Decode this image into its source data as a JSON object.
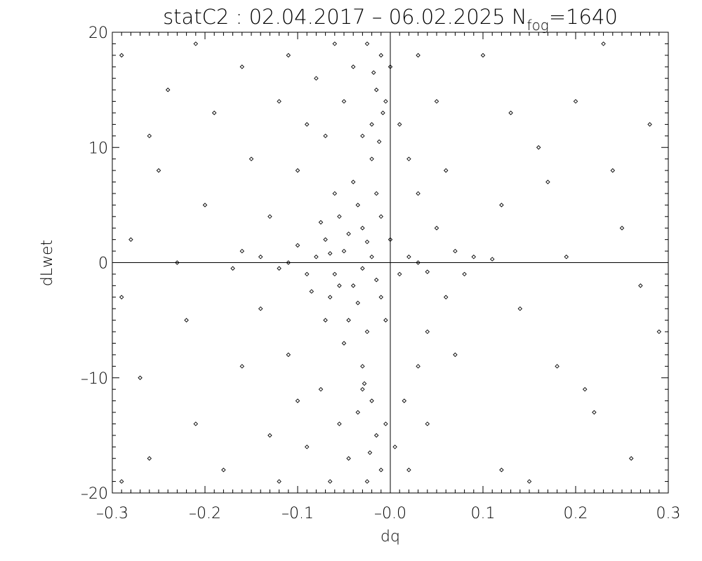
{
  "chart_data": {
    "type": "scatter",
    "title": "statC2 : 02.04.2017 – 06.02.2025 N",
    "title_subscript": "fog",
    "title_suffix": "=1640",
    "xlabel": "dq",
    "ylabel": "dLwet",
    "xlim": [
      -0.3,
      0.3
    ],
    "ylim": [
      -20,
      20
    ],
    "x_ticks": [
      -0.3,
      -0.2,
      -0.1,
      0.0,
      0.1,
      0.2,
      0.3
    ],
    "x_tick_labels": [
      "–0.3",
      "–0.2",
      "–0.1",
      "–0.0",
      "0.1",
      "0.2",
      "0.3"
    ],
    "y_ticks": [
      -20,
      -10,
      0,
      10,
      20
    ],
    "y_tick_labels": [
      "–20",
      "–10",
      "0",
      "10",
      "20"
    ],
    "reference_lines": {
      "x": 0.0,
      "y": 0
    },
    "marker": "open-diamond",
    "marker_color": "#000000",
    "grid": false,
    "points": [
      [
        -0.05,
        1
      ],
      [
        -0.04,
        -2
      ],
      [
        -0.03,
        3
      ],
      [
        -0.06,
        -1
      ],
      [
        -0.02,
        0.5
      ],
      [
        -0.07,
        2
      ],
      [
        -0.01,
        -3
      ],
      [
        -0.035,
        5
      ],
      [
        -0.045,
        -5
      ],
      [
        -0.055,
        4
      ],
      [
        -0.025,
        -6
      ],
      [
        -0.015,
        6
      ],
      [
        -0.065,
        -3
      ],
      [
        -0.08,
        0.5
      ],
      [
        -0.09,
        -1
      ],
      [
        -0.1,
        1.5
      ],
      [
        0.0,
        2
      ],
      [
        0.01,
        -1
      ],
      [
        0.02,
        0.5
      ],
      [
        -0.03,
        -0.5
      ],
      [
        -0.04,
        7
      ],
      [
        -0.05,
        -7
      ],
      [
        -0.02,
        9
      ],
      [
        -0.03,
        -9
      ],
      [
        -0.06,
        6
      ],
      [
        -0.07,
        -5
      ],
      [
        -0.11,
        0
      ],
      [
        -0.12,
        -0.5
      ],
      [
        0.03,
        0
      ],
      [
        0.04,
        -0.8
      ],
      [
        -0.075,
        3.5
      ],
      [
        -0.085,
        -2.5
      ],
      [
        -0.01,
        4
      ],
      [
        -0.005,
        -5
      ],
      [
        -0.045,
        2.5
      ],
      [
        -0.055,
        -2
      ],
      [
        -0.035,
        -3.5
      ],
      [
        -0.025,
        1.8
      ],
      [
        -0.065,
        0.8
      ],
      [
        -0.015,
        -1.5
      ],
      [
        -0.02,
        12
      ],
      [
        -0.015,
        15
      ],
      [
        -0.01,
        18
      ],
      [
        -0.025,
        19
      ],
      [
        -0.005,
        14
      ],
      [
        -0.03,
        11
      ],
      [
        -0.02,
        -12
      ],
      [
        -0.015,
        -15
      ],
      [
        -0.01,
        -18
      ],
      [
        -0.025,
        -19
      ],
      [
        -0.005,
        -14
      ],
      [
        -0.03,
        -11
      ],
      [
        -0.018,
        16.5
      ],
      [
        -0.022,
        -16.5
      ],
      [
        -0.012,
        10.5
      ],
      [
        -0.028,
        -10.5
      ],
      [
        -0.008,
        13
      ],
      [
        -0.035,
        -13
      ],
      [
        -0.04,
        17
      ],
      [
        -0.045,
        -17
      ],
      [
        -0.05,
        14
      ],
      [
        -0.055,
        -14
      ],
      [
        -0.06,
        19
      ],
      [
        -0.065,
        -19
      ],
      [
        0.0,
        17
      ],
      [
        0.005,
        -16
      ],
      [
        0.01,
        12
      ],
      [
        0.015,
        -12
      ],
      [
        -0.07,
        11
      ],
      [
        -0.075,
        -11
      ],
      [
        -0.1,
        8
      ],
      [
        -0.11,
        -8
      ],
      [
        -0.13,
        4
      ],
      [
        -0.14,
        -4
      ],
      [
        -0.09,
        12
      ],
      [
        -0.1,
        -12
      ],
      [
        -0.08,
        16
      ],
      [
        -0.09,
        -16
      ],
      [
        0.03,
        6
      ],
      [
        0.04,
        -6
      ],
      [
        0.05,
        3
      ],
      [
        0.06,
        -3
      ],
      [
        0.02,
        9
      ],
      [
        0.03,
        -9
      ],
      [
        0.05,
        14
      ],
      [
        0.04,
        -14
      ],
      [
        -0.12,
        14
      ],
      [
        -0.13,
        -15
      ],
      [
        -0.15,
        9
      ],
      [
        -0.16,
        -9
      ],
      [
        0.07,
        1
      ],
      [
        0.08,
        -1
      ],
      [
        0.09,
        0.5
      ],
      [
        -0.14,
        0.5
      ],
      [
        -0.16,
        1
      ],
      [
        -0.17,
        -0.5
      ],
      [
        0.06,
        8
      ],
      [
        0.07,
        -8
      ],
      [
        -0.11,
        18
      ],
      [
        -0.12,
        -19
      ],
      [
        0.03,
        18
      ],
      [
        0.02,
        -18
      ],
      [
        -0.2,
        5
      ],
      [
        -0.22,
        -5
      ],
      [
        -0.25,
        8
      ],
      [
        -0.27,
        -10
      ],
      [
        -0.19,
        13
      ],
      [
        -0.21,
        -14
      ],
      [
        -0.24,
        15
      ],
      [
        -0.26,
        -17
      ],
      [
        -0.28,
        2
      ],
      [
        -0.29,
        -3
      ],
      [
        0.12,
        5
      ],
      [
        0.14,
        -4
      ],
      [
        0.16,
        10
      ],
      [
        0.18,
        -9
      ],
      [
        0.2,
        14
      ],
      [
        0.22,
        -13
      ],
      [
        0.25,
        3
      ],
      [
        0.27,
        -2
      ],
      [
        0.24,
        8
      ],
      [
        0.1,
        18
      ],
      [
        0.12,
        -18
      ],
      [
        0.15,
        -19
      ],
      [
        0.19,
        0.5
      ],
      [
        0.11,
        0.3
      ],
      [
        -0.18,
        -18
      ],
      [
        -0.16,
        17
      ],
      [
        -0.23,
        0
      ],
      [
        -0.26,
        11
      ],
      [
        0.28,
        12
      ],
      [
        0.29,
        -6
      ],
      [
        0.21,
        -11
      ],
      [
        0.17,
        7
      ],
      [
        0.13,
        13
      ],
      [
        -0.29,
        18
      ],
      [
        -0.29,
        -19
      ],
      [
        0.26,
        -17
      ],
      [
        0.23,
        19
      ],
      [
        -0.21,
        19
      ]
    ]
  }
}
